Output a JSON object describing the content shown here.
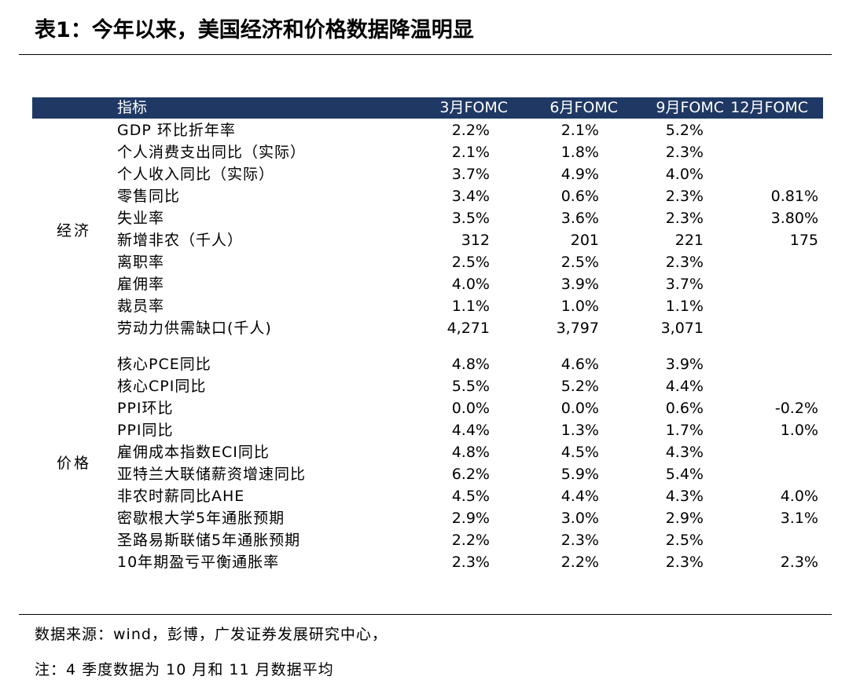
{
  "title": "表1：今年以来，美国经济和价格数据降温明显",
  "header": {
    "indicator": "指标",
    "columns": [
      "3月FOMC",
      "6月FOMC",
      "9月FOMC",
      "12月FOMC"
    ]
  },
  "groups": {
    "economy": "经济",
    "prices": "价格"
  },
  "economy_rows": [
    {
      "label": "GDP 环比折年率",
      "values": [
        "2.2%",
        "2.1%",
        "5.2%",
        ""
      ]
    },
    {
      "label": "个人消费支出同比（实际）",
      "values": [
        "2.1%",
        "1.8%",
        "2.3%",
        ""
      ]
    },
    {
      "label": "个人收入同比（实际）",
      "values": [
        "3.7%",
        "4.9%",
        "4.0%",
        ""
      ]
    },
    {
      "label": "零售同比",
      "values": [
        "3.4%",
        "0.6%",
        "2.3%",
        "0.81%"
      ]
    },
    {
      "label": "失业率",
      "values": [
        "3.5%",
        "3.6%",
        "2.3%",
        "3.80%"
      ]
    },
    {
      "label": "新增非农（千人）",
      "values": [
        "312",
        "201",
        "221",
        "175"
      ]
    },
    {
      "label": "离职率",
      "values": [
        "2.5%",
        "2.5%",
        "2.3%",
        ""
      ]
    },
    {
      "label": "雇佣率",
      "values": [
        "4.0%",
        "3.9%",
        "3.7%",
        ""
      ]
    },
    {
      "label": "裁员率",
      "values": [
        "1.1%",
        "1.0%",
        "1.1%",
        ""
      ]
    },
    {
      "label": "劳动力供需缺口(千人)",
      "values": [
        "4,271",
        "3,797",
        "3,071",
        ""
      ]
    }
  ],
  "price_rows": [
    {
      "label": "核心PCE同比",
      "values": [
        "4.8%",
        "4.6%",
        "3.9%",
        ""
      ]
    },
    {
      "label": "核心CPI同比",
      "values": [
        "5.5%",
        "5.2%",
        "4.4%",
        ""
      ]
    },
    {
      "label": "PPI环比",
      "values": [
        "0.0%",
        "0.0%",
        "0.6%",
        "-0.2%"
      ]
    },
    {
      "label": "PPI同比",
      "values": [
        "4.4%",
        "1.3%",
        "1.7%",
        "1.0%"
      ]
    },
    {
      "label": "雇佣成本指数ECI同比",
      "values": [
        "4.8%",
        "4.5%",
        "4.3%",
        ""
      ]
    },
    {
      "label": "亚特兰大联储薪资增速同比",
      "values": [
        "6.2%",
        "5.9%",
        "5.4%",
        ""
      ]
    },
    {
      "label": "非农时薪同比AHE",
      "values": [
        "4.5%",
        "4.4%",
        "4.3%",
        "4.0%"
      ]
    },
    {
      "label": "密歇根大学5年通胀预期",
      "values": [
        "2.9%",
        "3.0%",
        "2.9%",
        "3.1%"
      ]
    },
    {
      "label": "圣路易斯联储5年通胀预期",
      "values": [
        "2.2%",
        "2.3%",
        "2.5%",
        ""
      ]
    },
    {
      "label": "10年期盈亏平衡通胀率",
      "values": [
        "2.3%",
        "2.2%",
        "2.3%",
        "2.3%"
      ]
    }
  ],
  "footer": {
    "source": "数据来源：wind，彭博，广发证券发展研究中心，",
    "note": "注：4 季度数据为 10 月和 11 月数据平均"
  }
}
